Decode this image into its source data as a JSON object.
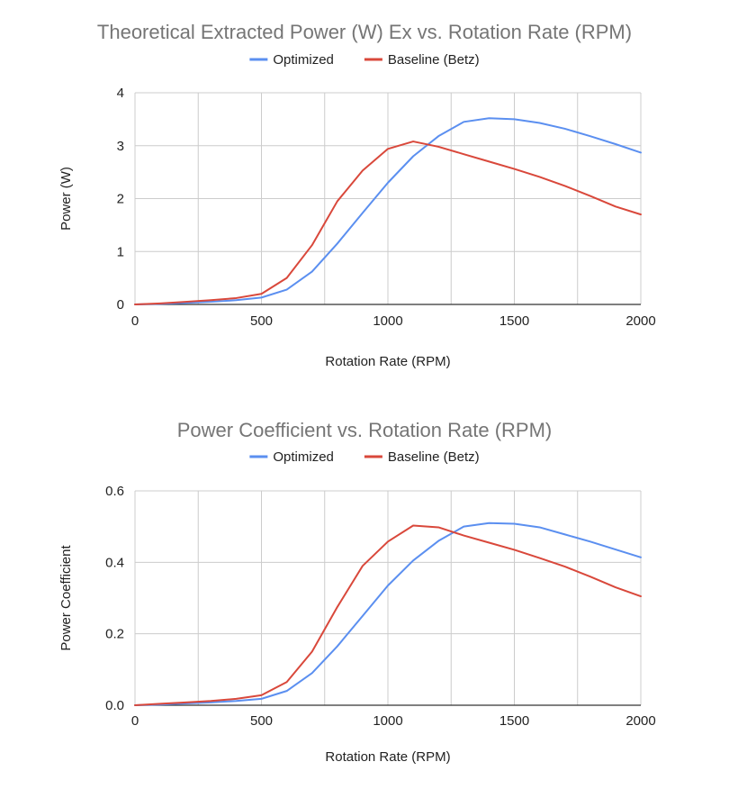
{
  "chart_data": [
    {
      "type": "line",
      "title": "Theoretical Extracted Power (W) Ex vs. Rotation Rate (RPM)",
      "xlabel": "Rotation Rate (RPM)",
      "ylabel": "Power (W)",
      "xlim": [
        0,
        2000
      ],
      "ylim": [
        0,
        4
      ],
      "xticks": [
        0,
        500,
        1000,
        1500,
        2000
      ],
      "yticks": [
        0,
        1,
        2,
        3,
        4
      ],
      "x_tick_labels": [
        "0",
        "500",
        "1000",
        "1500",
        "2000"
      ],
      "y_tick_labels": [
        "0",
        "1",
        "2",
        "3",
        "4"
      ],
      "grid": true,
      "legend_position": "top",
      "x": [
        0,
        100,
        200,
        300,
        400,
        500,
        600,
        700,
        800,
        900,
        1000,
        1100,
        1200,
        1300,
        1400,
        1500,
        1600,
        1700,
        1800,
        1900,
        2000
      ],
      "series": [
        {
          "name": "Optimized",
          "color": "#5b8ff0",
          "values": [
            0,
            0.01,
            0.03,
            0.05,
            0.08,
            0.13,
            0.28,
            0.62,
            1.15,
            1.73,
            2.3,
            2.8,
            3.18,
            3.45,
            3.52,
            3.5,
            3.43,
            3.32,
            3.18,
            3.03,
            2.87
          ]
        },
        {
          "name": "Baseline (Betz)",
          "color": "#d9483b",
          "values": [
            0,
            0.02,
            0.05,
            0.08,
            0.12,
            0.2,
            0.5,
            1.12,
            1.95,
            2.53,
            2.94,
            3.08,
            2.98,
            2.84,
            2.7,
            2.56,
            2.41,
            2.24,
            2.05,
            1.85,
            1.7
          ]
        }
      ]
    },
    {
      "type": "line",
      "title": "Power Coefficient vs. Rotation Rate (RPM)",
      "xlabel": "Rotation Rate (RPM)",
      "ylabel": "Power Coefficient",
      "xlim": [
        0,
        2000
      ],
      "ylim": [
        0,
        0.6
      ],
      "xticks": [
        0,
        500,
        1000,
        1500,
        2000
      ],
      "yticks": [
        0,
        0.2,
        0.4,
        0.6
      ],
      "x_tick_labels": [
        "0",
        "500",
        "1000",
        "1500",
        "2000"
      ],
      "y_tick_labels": [
        "0.0",
        "0.2",
        "0.4",
        "0.6"
      ],
      "grid": true,
      "legend_position": "top",
      "x": [
        0,
        100,
        200,
        300,
        400,
        500,
        600,
        700,
        800,
        900,
        1000,
        1100,
        1200,
        1300,
        1400,
        1500,
        1600,
        1700,
        1800,
        1900,
        2000
      ],
      "series": [
        {
          "name": "Optimized",
          "color": "#5b8ff0",
          "values": [
            0,
            0.002,
            0.005,
            0.008,
            0.012,
            0.018,
            0.04,
            0.09,
            0.165,
            0.25,
            0.335,
            0.405,
            0.46,
            0.5,
            0.51,
            0.508,
            0.498,
            0.478,
            0.458,
            0.436,
            0.414
          ]
        },
        {
          "name": "Baseline (Betz)",
          "color": "#d9483b",
          "values": [
            0,
            0.004,
            0.008,
            0.012,
            0.018,
            0.028,
            0.065,
            0.15,
            0.275,
            0.39,
            0.458,
            0.503,
            0.498,
            0.475,
            0.455,
            0.435,
            0.412,
            0.388,
            0.36,
            0.33,
            0.305
          ]
        }
      ]
    }
  ]
}
